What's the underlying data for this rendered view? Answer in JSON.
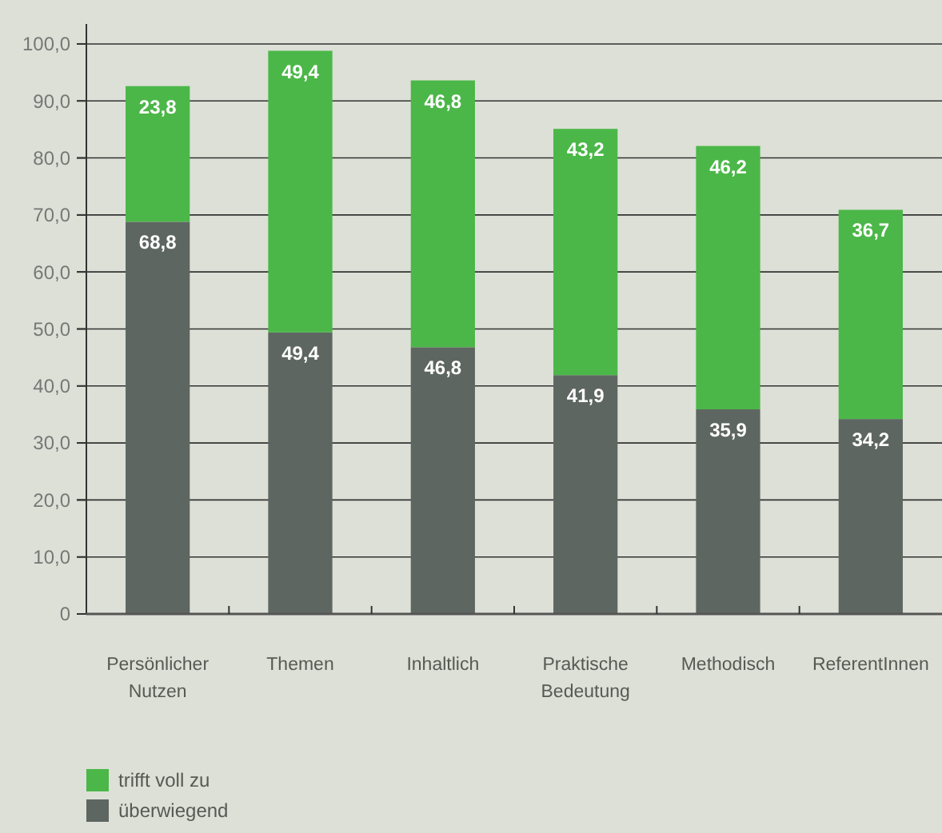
{
  "chart_data": {
    "type": "bar",
    "stacked": true,
    "categories": [
      "Persönlicher Nutzen",
      "Themen",
      "Inhaltlich",
      "Praktische Bedeutung",
      "Methodisch",
      "ReferentInnen"
    ],
    "series": [
      {
        "name": "überwiegend",
        "color": "#5e6662",
        "values": [
          68.8,
          49.4,
          46.8,
          41.9,
          35.9,
          34.2
        ],
        "value_labels": [
          "68,8",
          "49,4",
          "46,8",
          "41,9",
          "35,9",
          "34,2"
        ]
      },
      {
        "name": "trifft voll zu",
        "color": "#4bb748",
        "values": [
          23.8,
          49.4,
          46.8,
          43.2,
          46.2,
          36.7
        ],
        "value_labels": [
          "23,8",
          "49,4",
          "46,8",
          "43,2",
          "46,2",
          "36,7"
        ]
      }
    ],
    "ylim": [
      0,
      103.5
    ],
    "yticks": [
      0,
      {
        "value": 10,
        "label": "10,0"
      },
      {
        "value": 20,
        "label": "20,0"
      },
      {
        "value": 30,
        "label": "30,0"
      },
      {
        "value": 40,
        "label": "40,0"
      },
      {
        "value": 50,
        "label": "50,0"
      },
      {
        "value": 60,
        "label": "60,0"
      },
      {
        "value": 70,
        "label": "70,0"
      },
      {
        "value": 80,
        "label": "80,0"
      },
      {
        "value": 90,
        "label": "90,0"
      },
      {
        "value": 100,
        "label": "100,0"
      }
    ],
    "grid": "y",
    "legend": "bottom left"
  }
}
